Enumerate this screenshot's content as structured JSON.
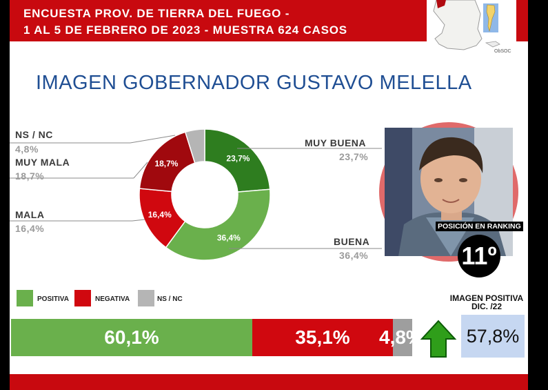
{
  "header": {
    "line1": "ENCUESTA PROV. DE TIERRA DEL FUEGO -",
    "line2": "1 AL 5 DE FEBRERO DE 2023 - MUESTRA 624 CASOS"
  },
  "map_caption": "ObSOC",
  "title": "IMAGEN GOBERNADOR  GUSTAVO MELELLA",
  "chart_data": [
    {
      "type": "pie",
      "variant": "donut",
      "slices": [
        {
          "label": "MUY BUENA",
          "value": 23.7,
          "text": "23,7%",
          "color": "#2e7d1f"
        },
        {
          "label": "BUENA",
          "value": 36.4,
          "text": "36,4%",
          "color": "#6ab04c"
        },
        {
          "label": "MALA",
          "value": 16.4,
          "text": "16,4%",
          "color": "#d0080f"
        },
        {
          "label": "MUY MALA",
          "value": 18.7,
          "text": "18,7%",
          "color": "#a0090e"
        },
        {
          "label": "NS / NC",
          "value": 4.8,
          "text": "4,8%",
          "color": "#b5b5b5"
        }
      ]
    },
    {
      "type": "bar",
      "orientation": "horizontal-stacked",
      "legend": [
        "POSITIVA",
        "NEGATIVA",
        "NS / NC"
      ],
      "series": [
        {
          "name": "POSITIVA",
          "value": 60.1,
          "text": "60,1%",
          "color": "#6ab04c"
        },
        {
          "name": "NEGATIVA",
          "value": 35.1,
          "text": "35,1%",
          "color": "#d0080f"
        },
        {
          "name": "NS / NC",
          "value": 4.8,
          "text": "4,8%",
          "color": "#9e9e9e"
        }
      ]
    }
  ],
  "ranking": {
    "label": "POSICIÓN EN RANKING",
    "value": "11º"
  },
  "previous": {
    "title_line1": "IMAGEN POSITIVA",
    "title_line2": "DIC. /22",
    "value": "57,8%"
  }
}
